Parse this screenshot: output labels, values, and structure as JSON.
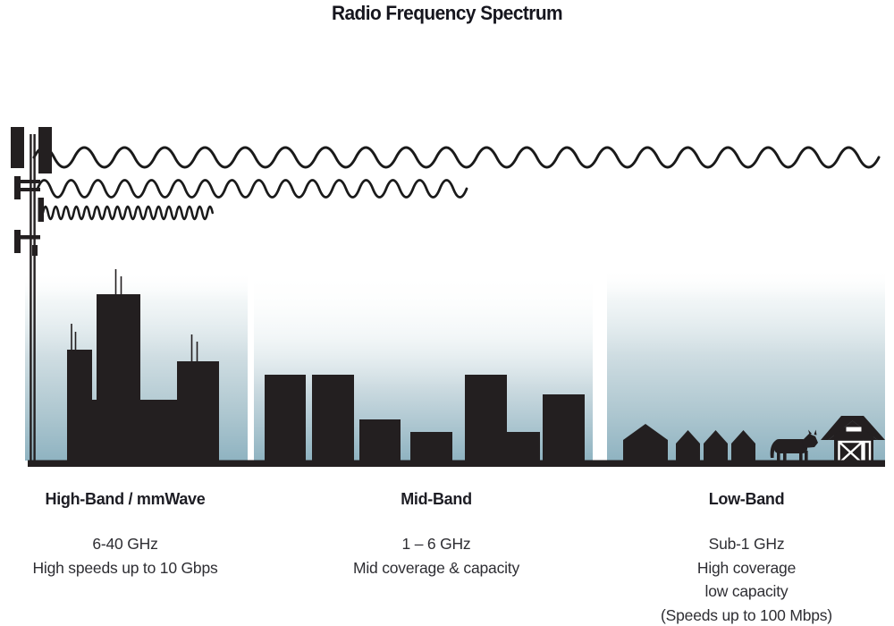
{
  "title": "Radio Frequency Spectrum",
  "bands": [
    {
      "name": "High-Band / mmWave",
      "freq": "6-40 GHz",
      "lines": [
        "High speeds up to 10 Gbps"
      ]
    },
    {
      "name": "Mid-Band",
      "freq": "1 – 6 GHz",
      "lines": [
        "Mid coverage & capacity"
      ]
    },
    {
      "name": "Low-Band",
      "freq": "Sub-1 GHz",
      "lines": [
        "High coverage",
        "low capacity",
        "(Speeds up to 100 Mbps)"
      ]
    }
  ],
  "colors": {
    "ink": "#231f20",
    "sky_bottom": "#8fb3c1",
    "background": "#ffffff"
  }
}
